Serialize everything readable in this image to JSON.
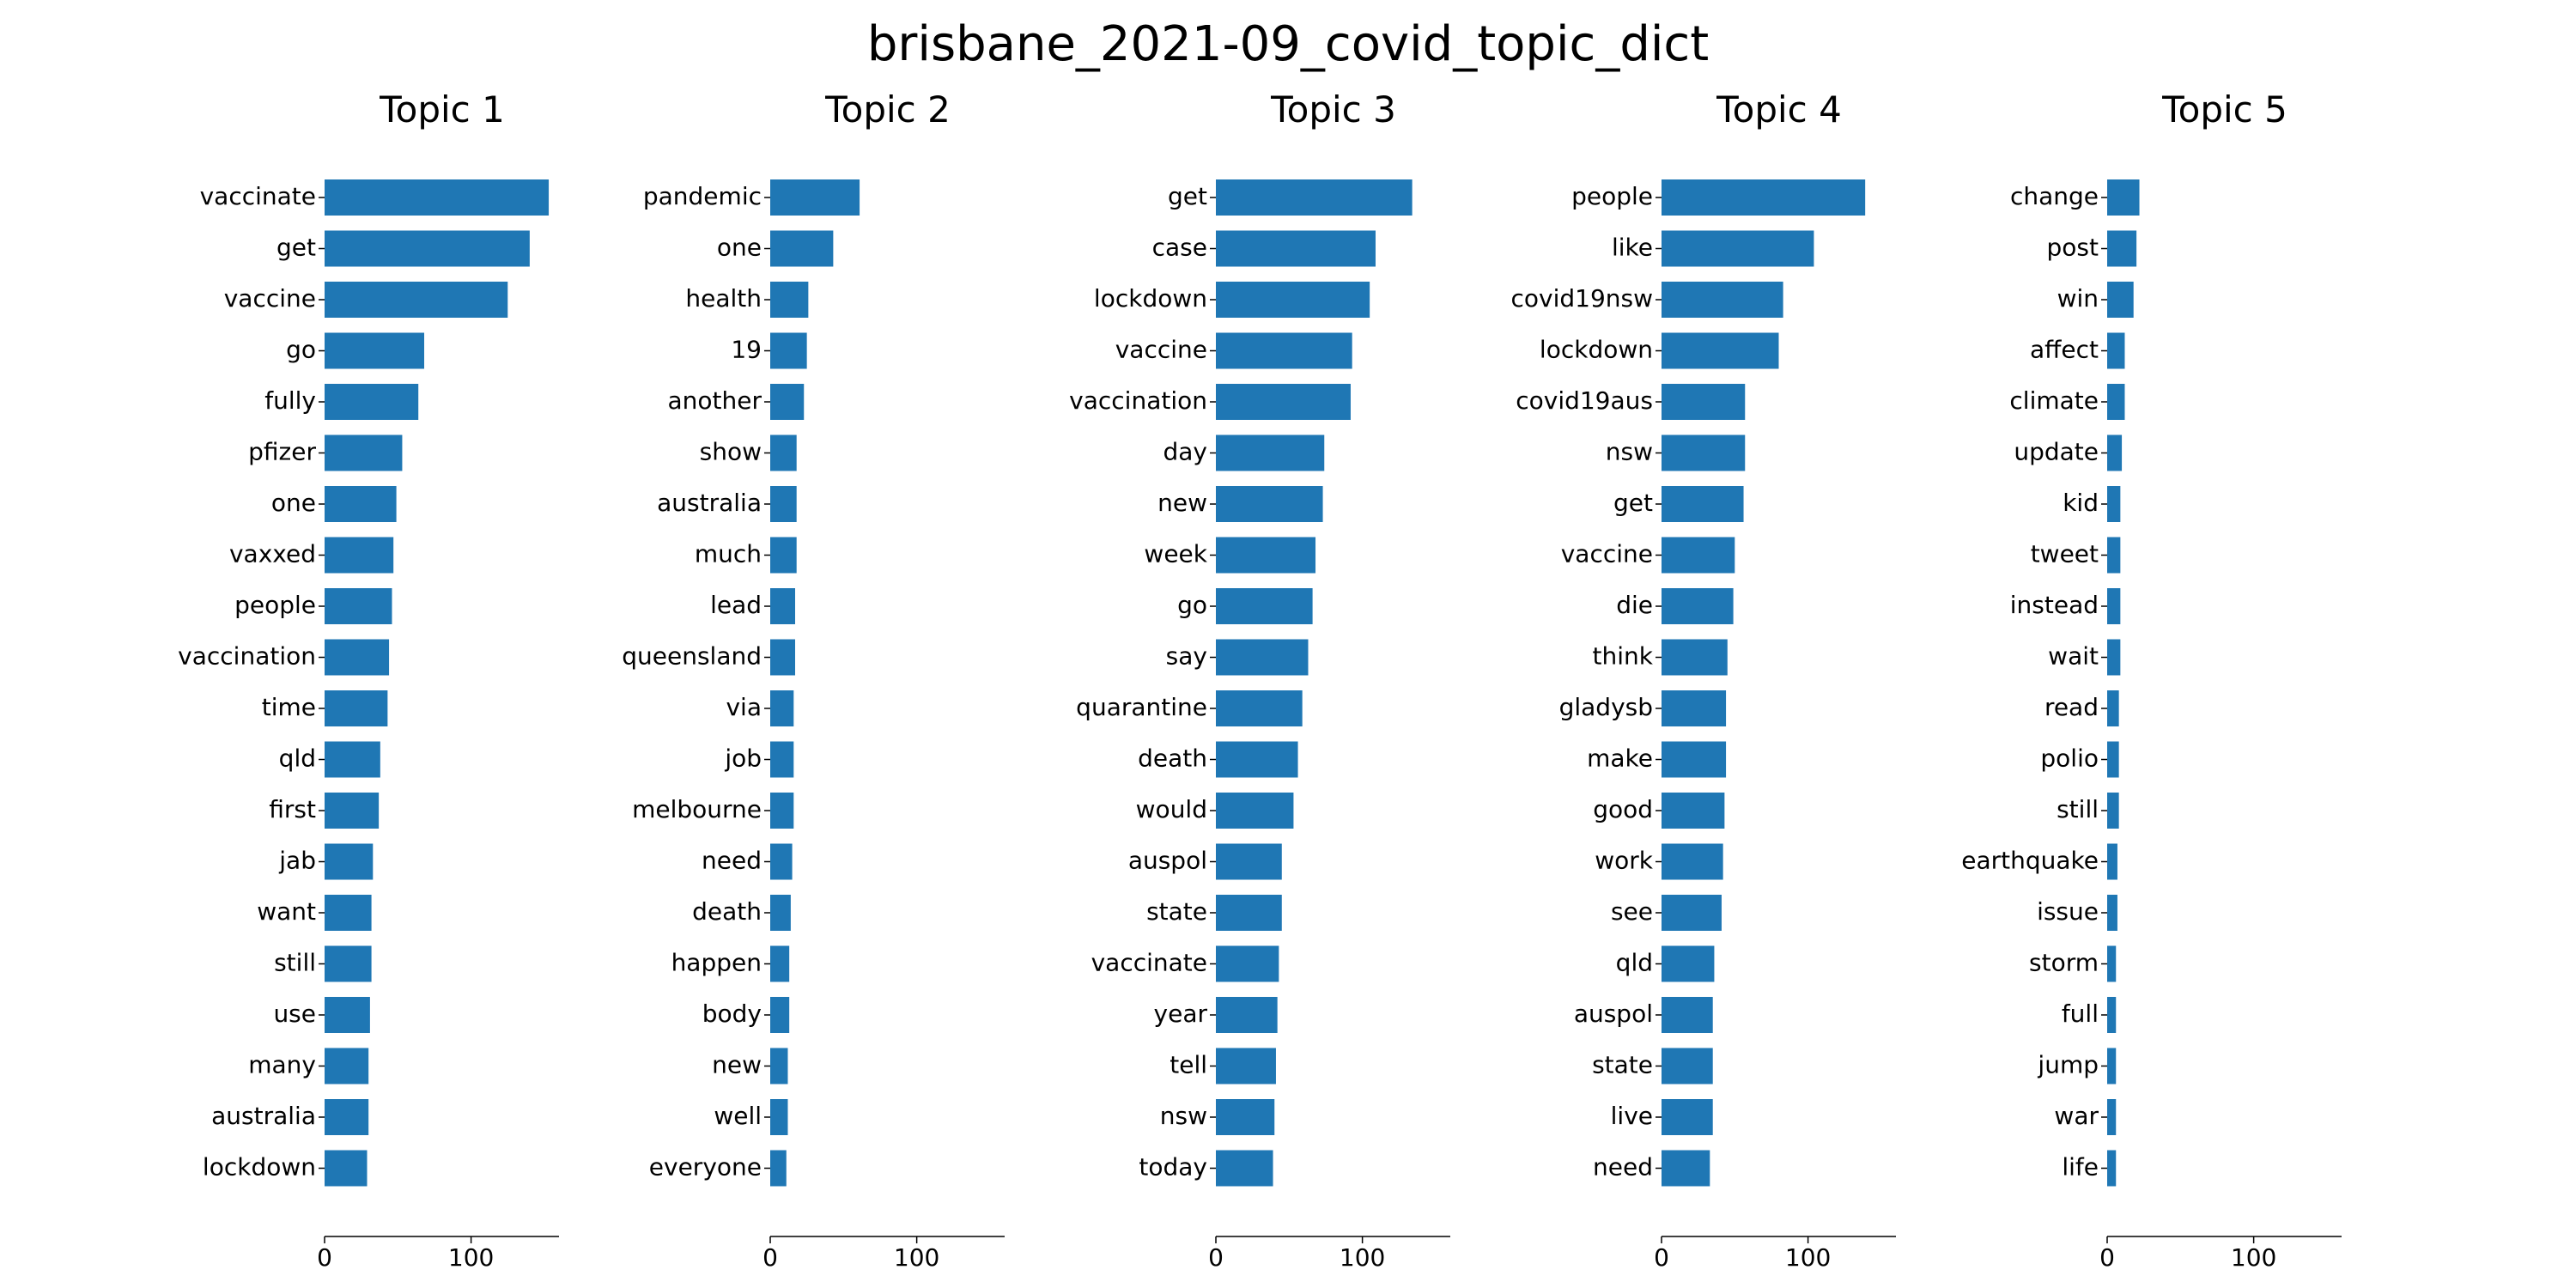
{
  "chart_data": {
    "type": "bar",
    "orientation": "horizontal",
    "title": "brisbane_2021-09_covid_topic_dict",
    "bar_color": "#1f77b4",
    "grid": false,
    "xlim": [
      0,
      160
    ],
    "xticks": [
      0,
      100
    ],
    "panels": [
      {
        "title": "Topic 1",
        "categories": [
          "vaccinate",
          "get",
          "vaccine",
          "go",
          "fully",
          "pfizer",
          "one",
          "vaxxed",
          "people",
          "vaccination",
          "time",
          "qld",
          "first",
          "jab",
          "want",
          "still",
          "use",
          "many",
          "australia",
          "lockdown"
        ],
        "values": [
          153,
          140,
          125,
          68,
          64,
          53,
          49,
          47,
          46,
          44,
          43,
          38,
          37,
          33,
          32,
          32,
          31,
          30,
          30,
          29
        ]
      },
      {
        "title": "Topic 2",
        "categories": [
          "pandemic",
          "one",
          "health",
          "19",
          "another",
          "show",
          "australia",
          "much",
          "lead",
          "queensland",
          "via",
          "job",
          "melbourne",
          "need",
          "death",
          "happen",
          "body",
          "new",
          "well",
          "everyone"
        ],
        "values": [
          61,
          43,
          26,
          25,
          23,
          18,
          18,
          18,
          17,
          17,
          16,
          16,
          16,
          15,
          14,
          13,
          13,
          12,
          12,
          11
        ]
      },
      {
        "title": "Topic 3",
        "categories": [
          "get",
          "case",
          "lockdown",
          "vaccine",
          "vaccination",
          "day",
          "new",
          "week",
          "go",
          "say",
          "quarantine",
          "death",
          "would",
          "auspol",
          "state",
          "vaccinate",
          "year",
          "tell",
          "nsw",
          "today"
        ],
        "values": [
          134,
          109,
          105,
          93,
          92,
          74,
          73,
          68,
          66,
          63,
          59,
          56,
          53,
          45,
          45,
          43,
          42,
          41,
          40,
          39
        ]
      },
      {
        "title": "Topic 4",
        "categories": [
          "people",
          "like",
          "covid19nsw",
          "lockdown",
          "covid19aus",
          "nsw",
          "get",
          "vaccine",
          "die",
          "think",
          "gladysb",
          "make",
          "good",
          "work",
          "see",
          "qld",
          "auspol",
          "state",
          "live",
          "need"
        ],
        "values": [
          139,
          104,
          83,
          80,
          57,
          57,
          56,
          50,
          49,
          45,
          44,
          44,
          43,
          42,
          41,
          36,
          35,
          35,
          35,
          33
        ]
      },
      {
        "title": "Topic 5",
        "categories": [
          "change",
          "post",
          "win",
          "affect",
          "climate",
          "update",
          "kid",
          "tweet",
          "instead",
          "wait",
          "read",
          "polio",
          "still",
          "earthquake",
          "issue",
          "storm",
          "full",
          "jump",
          "war",
          "life"
        ],
        "values": [
          22,
          20,
          18,
          12,
          12,
          10,
          9,
          9,
          9,
          9,
          8,
          8,
          8,
          7,
          7,
          6,
          6,
          6,
          6,
          6
        ]
      }
    ]
  }
}
